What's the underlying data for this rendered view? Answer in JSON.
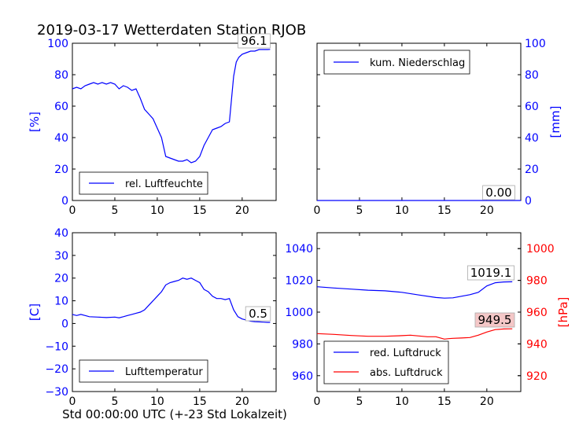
{
  "figure": {
    "title": "2019-03-17 Wetterdaten Station RJOB",
    "xlabel": "Std 00:00:00 UTC (+-23 Std Lokalzeit)"
  },
  "colors": {
    "blue": "#0000ff",
    "red": "#ff0000",
    "label_red_bg": "#f4c7c7"
  },
  "chart_data": [
    {
      "type": "line",
      "panel": "humidity",
      "ylabel": "[%]",
      "xlim": [
        0,
        24
      ],
      "ylim": [
        0,
        100
      ],
      "xticks": [
        "0",
        "5",
        "10",
        "15",
        "20"
      ],
      "yticks": [
        "0",
        "20",
        "40",
        "60",
        "80",
        "100"
      ],
      "legend": "bottom-left",
      "annotation": "96.1",
      "series": [
        {
          "name": "rel. Luftfeuchte",
          "color": "#0000ff",
          "x": [
            0,
            0.5,
            1,
            1.5,
            2,
            2.5,
            3,
            3.5,
            4,
            4.5,
            5,
            5.5,
            6,
            6.5,
            7,
            7.5,
            8,
            8.5,
            9,
            9.5,
            10,
            10.5,
            11,
            11.5,
            12,
            12.5,
            13,
            13.5,
            14,
            14.5,
            15,
            15.5,
            16,
            16.5,
            17,
            17.5,
            18,
            18.5,
            19,
            19.3,
            19.6,
            20,
            20.5,
            21,
            21.5,
            22,
            22.5,
            23,
            23.3
          ],
          "y": [
            71,
            72,
            71,
            73,
            74,
            75,
            74,
            75,
            74,
            75,
            74,
            71,
            73,
            72,
            70,
            71,
            65,
            58,
            55,
            52,
            46,
            40,
            28,
            27,
            26,
            25,
            25,
            26,
            24,
            25,
            28,
            35,
            40,
            45,
            46,
            47,
            49,
            50,
            79,
            88,
            91,
            93,
            94,
            95,
            95,
            96,
            96,
            96,
            96.1
          ]
        }
      ]
    },
    {
      "type": "line",
      "panel": "precipitation",
      "ylabel": "[mm]",
      "xlim": [
        0,
        24
      ],
      "ylim": [
        0,
        100
      ],
      "xticks": [
        "0",
        "5",
        "10",
        "15",
        "20"
      ],
      "yticks": [
        "0",
        "20",
        "40",
        "60",
        "80",
        "100"
      ],
      "legend": "top-left",
      "annotation": "0.00",
      "series": [
        {
          "name": "kum. Niederschlag",
          "color": "#0000ff",
          "x": [
            0,
            24
          ],
          "y": [
            0,
            0
          ]
        }
      ]
    },
    {
      "type": "line",
      "panel": "temperature",
      "ylabel": "[C]",
      "xlim": [
        0,
        24
      ],
      "ylim": [
        -30,
        40
      ],
      "xticks": [
        "0",
        "5",
        "10",
        "15",
        "20"
      ],
      "yticks": [
        "−30",
        "−20",
        "−10",
        "0",
        "10",
        "20",
        "30",
        "40"
      ],
      "legend": "bottom-left",
      "annotation": "0.5",
      "series": [
        {
          "name": "Lufttemperatur",
          "color": "#0000ff",
          "x": [
            0,
            0.5,
            1,
            1.5,
            2,
            3,
            4,
            5,
            5.5,
            6,
            6.5,
            7,
            7.5,
            8,
            8.5,
            9,
            9.5,
            10,
            10.5,
            11,
            11.5,
            12,
            12.5,
            13,
            13.5,
            14,
            14.5,
            15,
            15.5,
            16,
            16.5,
            17,
            17.5,
            18,
            18.5,
            19,
            19.5,
            20,
            20.5,
            21,
            21.5,
            22,
            22.5,
            23,
            23.3
          ],
          "y": [
            4,
            3.5,
            4,
            3.5,
            3,
            2.8,
            2.6,
            2.8,
            2.5,
            3,
            3.5,
            4,
            4.5,
            5,
            6,
            8,
            10,
            12,
            14,
            17,
            18,
            18.5,
            19,
            20,
            19.5,
            20,
            19,
            18,
            15,
            14,
            12,
            11,
            11,
            10.5,
            11,
            6,
            3,
            2,
            1.5,
            1,
            0.8,
            0.7,
            0.6,
            0.5,
            0.5
          ]
        }
      ]
    },
    {
      "type": "line",
      "panel": "pressure",
      "ylabel": "[hPa]",
      "xlim": [
        0,
        24
      ],
      "ylim": [
        950,
        1050
      ],
      "y2lim": [
        910,
        1010
      ],
      "xticks": [
        "0",
        "5",
        "10",
        "15",
        "20"
      ],
      "yticks": [
        "960",
        "980",
        "1000",
        "1020",
        "1040"
      ],
      "y2ticks": [
        "920",
        "940",
        "960",
        "980",
        "1000"
      ],
      "legend": "bottom-left",
      "annotations": [
        "1019.1",
        "949.5"
      ],
      "series": [
        {
          "name": "red. Luftdruck",
          "color": "#0000ff",
          "axis": "left",
          "x": [
            0,
            2,
            4,
            6,
            8,
            10,
            12,
            14,
            15,
            16,
            17,
            18,
            19,
            20,
            21,
            22,
            23
          ],
          "y": [
            1016,
            1015.2,
            1014.5,
            1013.8,
            1013.4,
            1012.5,
            1010.8,
            1009.2,
            1008.8,
            1009.0,
            1010.0,
            1011,
            1012.5,
            1016.5,
            1018.5,
            1019.0,
            1019.1
          ]
        },
        {
          "name": "abs. Luftdruck",
          "color": "#ff0000",
          "axis": "right",
          "x": [
            0,
            2,
            4,
            6,
            8,
            10,
            11,
            12,
            13,
            14,
            15,
            15.5,
            16,
            17,
            18,
            19,
            20,
            21,
            22,
            23
          ],
          "y": [
            946.5,
            946,
            945.3,
            944.8,
            944.8,
            945.2,
            945.5,
            945,
            944.5,
            944.5,
            943,
            943.3,
            943.5,
            943.7,
            944,
            945.5,
            947.5,
            949,
            949.4,
            949.5
          ]
        }
      ]
    }
  ]
}
